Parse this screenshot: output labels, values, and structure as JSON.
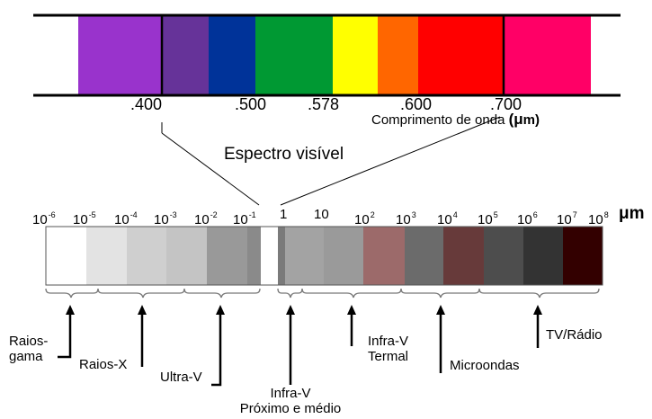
{
  "visible_spectrum": {
    "bands": [
      {
        "color": "#9933cc"
      },
      {
        "color": "#663399"
      },
      {
        "color": "#003399"
      },
      {
        "color": "#009933"
      },
      {
        "color": "#ffff00"
      },
      {
        "color": "#ff6600"
      },
      {
        "color": "#ff0000"
      },
      {
        "color": "#ff0066"
      }
    ],
    "ticks": [
      ".400",
      ".500",
      ".578",
      ".600",
      ".700"
    ],
    "unit_label": "Comprimento de onda",
    "unit_paren_open": "(",
    "unit_mu": "μ",
    "unit_m": "m)",
    "title": "Espectro visível"
  },
  "em_spectrum": {
    "exponent_labels": [
      {
        "base": "10",
        "exp": "-6"
      },
      {
        "base": "10",
        "exp": "-5"
      },
      {
        "base": "10",
        "exp": "-4"
      },
      {
        "base": "10",
        "exp": "-3"
      },
      {
        "base": "10",
        "exp": "-2"
      },
      {
        "base": "10",
        "exp": "-1"
      },
      {
        "base": "1",
        "exp": ""
      },
      {
        "base": "10",
        "exp": ""
      },
      {
        "base": "10",
        "exp": "2"
      },
      {
        "base": "10",
        "exp": "3"
      },
      {
        "base": "10",
        "exp": "4"
      },
      {
        "base": "10",
        "exp": "5"
      },
      {
        "base": "10",
        "exp": "6"
      },
      {
        "base": "10",
        "exp": "7"
      },
      {
        "base": "10",
        "exp": "8"
      }
    ],
    "unit": "μm",
    "gray_segments": [
      {
        "color": "#ffffff"
      },
      {
        "color": "#e3e3e3"
      },
      {
        "color": "#cfcfcf"
      },
      {
        "color": "#c4c4c4"
      },
      {
        "color": "#999999"
      },
      {
        "color": "#8a8a8a"
      },
      {
        "color": "#ffffff"
      },
      {
        "color": "#7a7a7a"
      },
      {
        "color": "#a3a3a3"
      },
      {
        "color": "#9a9a9a"
      },
      {
        "color": "#9c6a6a"
      },
      {
        "color": "#6b6b6b"
      },
      {
        "color": "#673a3a"
      },
      {
        "color": "#4d4d4d"
      },
      {
        "color": "#333333"
      },
      {
        "color": "#330000"
      }
    ],
    "regions": {
      "raios_gama": [
        "Raios-",
        "gama"
      ],
      "raios_x": "Raios-X",
      "ultra_v": "Ultra-V",
      "infra_proximo": [
        "Infra-V",
        "Próximo e médio"
      ],
      "infra_termal": [
        "Infra-V",
        "Termal"
      ],
      "microondas": "Microondas",
      "tv_radio": "TV/Rádio"
    }
  }
}
